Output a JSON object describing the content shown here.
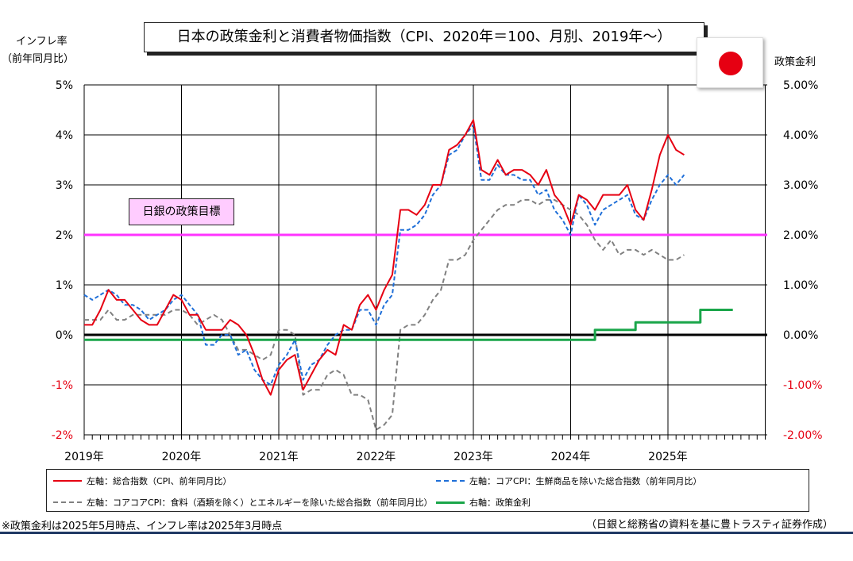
{
  "title": "日本の政策金利と消費者物価指数（CPI、2020年＝100、月別、2019年～）",
  "left_axis_title_line1": "インフレ率",
  "left_axis_title_line2": "（前年同月比）",
  "right_axis_title": "政策金利",
  "target_label": "日銀の政策目標",
  "footnote_left": "※政策金利は2025年5月時点、インフレ率は2025年3月時点",
  "footnote_right": "（日銀と総務省の資料を基に豊トラスティ証券作成）",
  "colors": {
    "headline": "#e60012",
    "core": "#1f6fd8",
    "corecore": "#808080",
    "policy": "#1aa64a",
    "target": "#ff33ff",
    "zero": "#000000"
  },
  "legend": [
    {
      "key": "headline",
      "label": "左軸：総合指数（CPI、前年同月比）"
    },
    {
      "key": "core",
      "label": "左軸：コアCPI：生鮮商品を除いた総合指数（前年同月比）"
    },
    {
      "key": "corecore",
      "label": "左軸：コアコアCPI：食料（酒類を除く）とエネルギーを除いた総合指数（前年同月比）"
    },
    {
      "key": "policy",
      "label": "右軸：政策金利"
    }
  ],
  "chart_data": {
    "type": "line",
    "x_tick_labels": [
      "2019年",
      "2020年",
      "2021年",
      "2022年",
      "2023年",
      "2024年",
      "2025年"
    ],
    "y_left_ticks": [
      "5%",
      "4%",
      "3%",
      "2%",
      "1%",
      "0%",
      "-1%",
      "-2%"
    ],
    "y_right_ticks": [
      "5.00%",
      "4.00%",
      "3.00%",
      "2.00%",
      "1.00%",
      "0.00%",
      "-1.00%",
      "-2.00%"
    ],
    "ylim": [
      -2,
      5
    ],
    "x_start": "2019-01",
    "target_rate": 2.0,
    "series": [
      {
        "key": "headline",
        "axis": "left",
        "values": [
          0.2,
          0.2,
          0.5,
          0.9,
          0.7,
          0.7,
          0.5,
          0.3,
          0.2,
          0.2,
          0.5,
          0.8,
          0.7,
          0.4,
          0.4,
          0.1,
          0.1,
          0.1,
          0.3,
          0.2,
          0.0,
          -0.4,
          -0.9,
          -1.2,
          -0.7,
          -0.5,
          -0.4,
          -1.1,
          -0.8,
          -0.5,
          -0.3,
          -0.4,
          0.2,
          0.1,
          0.6,
          0.8,
          0.5,
          0.9,
          1.2,
          2.5,
          2.5,
          2.4,
          2.6,
          3.0,
          3.0,
          3.7,
          3.8,
          4.0,
          4.3,
          3.3,
          3.2,
          3.5,
          3.2,
          3.3,
          3.3,
          3.2,
          3.0,
          3.3,
          2.8,
          2.6,
          2.2,
          2.8,
          2.7,
          2.5,
          2.8,
          2.8,
          2.8,
          3.0,
          2.5,
          2.3,
          2.9,
          3.6,
          4.0,
          3.7,
          3.6
        ]
      },
      {
        "key": "core",
        "axis": "left",
        "values": [
          0.8,
          0.7,
          0.8,
          0.9,
          0.8,
          0.6,
          0.6,
          0.5,
          0.3,
          0.4,
          0.5,
          0.7,
          0.8,
          0.6,
          0.4,
          -0.2,
          -0.2,
          0.0,
          0.0,
          -0.4,
          -0.3,
          -0.7,
          -0.9,
          -1.0,
          -0.6,
          -0.4,
          -0.1,
          -0.9,
          -0.6,
          -0.5,
          -0.2,
          0.0,
          0.1,
          0.1,
          0.5,
          0.5,
          0.2,
          0.6,
          0.8,
          2.1,
          2.1,
          2.2,
          2.4,
          2.8,
          3.0,
          3.6,
          3.7,
          4.0,
          4.2,
          3.1,
          3.1,
          3.4,
          3.2,
          3.2,
          3.1,
          3.1,
          2.8,
          2.9,
          2.5,
          2.3,
          2.0,
          2.8,
          2.6,
          2.2,
          2.5,
          2.6,
          2.7,
          2.8,
          2.4,
          2.3,
          2.7,
          3.0,
          3.2,
          3.0,
          3.2
        ]
      },
      {
        "key": "corecore",
        "axis": "left",
        "values": [
          0.3,
          0.3,
          0.3,
          0.5,
          0.3,
          0.3,
          0.4,
          0.4,
          0.4,
          0.4,
          0.4,
          0.5,
          0.5,
          0.4,
          0.2,
          0.3,
          0.4,
          0.3,
          0.0,
          -0.3,
          -0.3,
          -0.4,
          -0.5,
          -0.4,
          0.1,
          0.1,
          0.0,
          -1.2,
          -1.1,
          -1.1,
          -0.8,
          -0.7,
          -0.8,
          -1.2,
          -1.2,
          -1.3,
          -1.9,
          -1.8,
          -1.6,
          0.1,
          0.2,
          0.2,
          0.4,
          0.7,
          0.9,
          1.5,
          1.5,
          1.6,
          1.9,
          2.1,
          2.3,
          2.5,
          2.6,
          2.6,
          2.7,
          2.7,
          2.6,
          2.7,
          2.7,
          2.6,
          2.5,
          2.4,
          2.2,
          1.9,
          1.7,
          1.9,
          1.6,
          1.7,
          1.7,
          1.6,
          1.7,
          1.6,
          1.5,
          1.5,
          1.6
        ]
      },
      {
        "key": "policy",
        "axis": "right",
        "values": [
          -0.1,
          -0.1,
          -0.1,
          -0.1,
          -0.1,
          -0.1,
          -0.1,
          -0.1,
          -0.1,
          -0.1,
          -0.1,
          -0.1,
          -0.1,
          -0.1,
          -0.1,
          -0.1,
          -0.1,
          -0.1,
          -0.1,
          -0.1,
          -0.1,
          -0.1,
          -0.1,
          -0.1,
          -0.1,
          -0.1,
          -0.1,
          -0.1,
          -0.1,
          -0.1,
          -0.1,
          -0.1,
          -0.1,
          -0.1,
          -0.1,
          -0.1,
          -0.1,
          -0.1,
          -0.1,
          -0.1,
          -0.1,
          -0.1,
          -0.1,
          -0.1,
          -0.1,
          -0.1,
          -0.1,
          -0.1,
          -0.1,
          -0.1,
          -0.1,
          -0.1,
          -0.1,
          -0.1,
          -0.1,
          -0.1,
          -0.1,
          -0.1,
          -0.1,
          -0.1,
          -0.1,
          -0.1,
          -0.1,
          0.1,
          0.1,
          0.1,
          0.1,
          0.1,
          0.25,
          0.25,
          0.25,
          0.25,
          0.25,
          0.25,
          0.25,
          0.25,
          0.5,
          0.5,
          0.5,
          0.5,
          0.5
        ]
      }
    ]
  }
}
